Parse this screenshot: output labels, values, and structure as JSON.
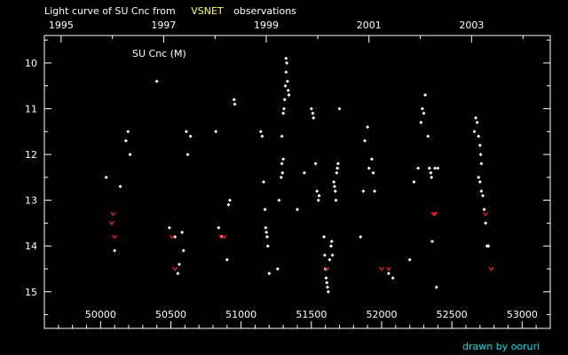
{
  "chart_data": {
    "type": "scatter",
    "title_prefix": "Light curve of SU Cnc from",
    "title_source": "VSNET",
    "title_suffix": "observations",
    "plot_label": "SU Cnc (M)",
    "credit": "drawn by ooruri",
    "colors": {
      "background": "#000000",
      "axes": "#ffffff",
      "observations": "#ffffff",
      "upper_limits": "#ff2020",
      "source_highlight": "#ffff66",
      "credit": "#00e5e5"
    },
    "xlim": [
      49600,
      53200
    ],
    "ylim": [
      15.8,
      9.4
    ],
    "y_inverted": true,
    "x_ticks": [
      50000,
      50500,
      51000,
      51500,
      52000,
      52500,
      53000
    ],
    "x_tick_labels": [
      "50000",
      "50500",
      "51000",
      "51500",
      "52000",
      "52500",
      "53000"
    ],
    "top_axis": {
      "years": [
        {
          "label": "1995",
          "jd": 49719
        },
        {
          "label": "1997",
          "jd": 50449
        },
        {
          "label": "1999",
          "jd": 51179
        },
        {
          "label": "2001",
          "jd": 51910
        },
        {
          "label": "2003",
          "jd": 52640
        }
      ]
    },
    "y_ticks": [
      10,
      11,
      12,
      13,
      14,
      15
    ],
    "y_tick_labels": [
      "10",
      "11",
      "12",
      "13",
      "14",
      "15"
    ],
    "series": [
      {
        "kind": "observation",
        "points": [
          [
            50040,
            12.5
          ],
          [
            50140,
            12.7
          ],
          [
            50180,
            11.7
          ],
          [
            50195,
            11.5
          ],
          [
            50210,
            12.0
          ],
          [
            50100,
            14.1
          ],
          [
            50400,
            10.4
          ],
          [
            50490,
            13.6
          ],
          [
            50530,
            13.8
          ],
          [
            50550,
            14.6
          ],
          [
            50560,
            14.4
          ],
          [
            50580,
            13.7
          ],
          [
            50590,
            14.1
          ],
          [
            50610,
            11.5
          ],
          [
            50620,
            12.0
          ],
          [
            50640,
            11.6
          ],
          [
            50820,
            11.5
          ],
          [
            50840,
            13.6
          ],
          [
            50860,
            13.8
          ],
          [
            50900,
            14.3
          ],
          [
            50910,
            13.1
          ],
          [
            50920,
            13.0
          ],
          [
            50950,
            10.8
          ],
          [
            50955,
            10.9
          ],
          [
            51140,
            11.5
          ],
          [
            51150,
            11.6
          ],
          [
            51160,
            12.6
          ],
          [
            51170,
            13.2
          ],
          [
            51175,
            13.6
          ],
          [
            51180,
            13.7
          ],
          [
            51185,
            13.8
          ],
          [
            51190,
            14.0
          ],
          [
            51200,
            14.6
          ],
          [
            51260,
            14.5
          ],
          [
            51270,
            13.0
          ],
          [
            51290,
            12.2
          ],
          [
            51285,
            12.5
          ],
          [
            51300,
            12.1
          ],
          [
            51295,
            12.4
          ],
          [
            51290,
            11.6
          ],
          [
            51300,
            11.1
          ],
          [
            51305,
            11.0
          ],
          [
            51310,
            10.8
          ],
          [
            51315,
            10.5
          ],
          [
            51320,
            10.2
          ],
          [
            51325,
            10.0
          ],
          [
            51320,
            9.9
          ],
          [
            51330,
            10.4
          ],
          [
            51335,
            10.6
          ],
          [
            51340,
            10.7
          ],
          [
            51400,
            13.2
          ],
          [
            51450,
            12.4
          ],
          [
            51500,
            11.0
          ],
          [
            51510,
            11.1
          ],
          [
            51515,
            11.2
          ],
          [
            51530,
            12.2
          ],
          [
            51540,
            12.8
          ],
          [
            51550,
            13.0
          ],
          [
            51555,
            12.9
          ],
          [
            51590,
            13.8
          ],
          [
            51595,
            14.2
          ],
          [
            51600,
            14.5
          ],
          [
            51605,
            14.7
          ],
          [
            51610,
            14.8
          ],
          [
            51615,
            14.9
          ],
          [
            51620,
            15.0
          ],
          [
            51630,
            14.3
          ],
          [
            51640,
            14.0
          ],
          [
            51645,
            13.9
          ],
          [
            51650,
            14.2
          ],
          [
            51660,
            12.6
          ],
          [
            51665,
            12.7
          ],
          [
            51670,
            12.8
          ],
          [
            51675,
            13.0
          ],
          [
            51680,
            12.4
          ],
          [
            51685,
            12.3
          ],
          [
            51690,
            12.2
          ],
          [
            51700,
            11.0
          ],
          [
            51850,
            13.8
          ],
          [
            51870,
            12.8
          ],
          [
            51880,
            11.7
          ],
          [
            51900,
            11.4
          ],
          [
            51910,
            12.3
          ],
          [
            51930,
            12.1
          ],
          [
            51940,
            12.4
          ],
          [
            51950,
            12.8
          ],
          [
            52050,
            14.6
          ],
          [
            52080,
            14.7
          ],
          [
            52200,
            14.3
          ],
          [
            52230,
            12.6
          ],
          [
            52260,
            12.3
          ],
          [
            52280,
            11.3
          ],
          [
            52290,
            11.0
          ],
          [
            52300,
            11.1
          ],
          [
            52310,
            10.7
          ],
          [
            52330,
            11.6
          ],
          [
            52340,
            12.3
          ],
          [
            52350,
            12.4
          ],
          [
            52355,
            12.5
          ],
          [
            52360,
            13.9
          ],
          [
            52380,
            12.3
          ],
          [
            52390,
            14.9
          ],
          [
            52400,
            12.3
          ],
          [
            52660,
            11.5
          ],
          [
            52670,
            11.2
          ],
          [
            52680,
            11.3
          ],
          [
            52690,
            11.6
          ],
          [
            52700,
            11.8
          ],
          [
            52705,
            12.0
          ],
          [
            52710,
            12.2
          ],
          [
            52690,
            12.5
          ],
          [
            52700,
            12.6
          ],
          [
            52710,
            12.8
          ],
          [
            52720,
            12.9
          ],
          [
            52730,
            13.2
          ],
          [
            52740,
            13.5
          ],
          [
            52750,
            14.0
          ],
          [
            52760,
            14.0
          ]
        ]
      },
      {
        "kind": "upper_limit",
        "points": [
          [
            50090,
            13.3
          ],
          [
            50080,
            13.5
          ],
          [
            50100,
            13.8
          ],
          [
            50510,
            13.8
          ],
          [
            50530,
            14.5
          ],
          [
            50860,
            13.8
          ],
          [
            50880,
            13.8
          ],
          [
            51610,
            14.5
          ],
          [
            52000,
            14.5
          ],
          [
            52050,
            14.5
          ],
          [
            52370,
            13.3
          ],
          [
            52380,
            13.3
          ],
          [
            52740,
            13.3
          ],
          [
            52780,
            14.5
          ]
        ]
      }
    ]
  }
}
